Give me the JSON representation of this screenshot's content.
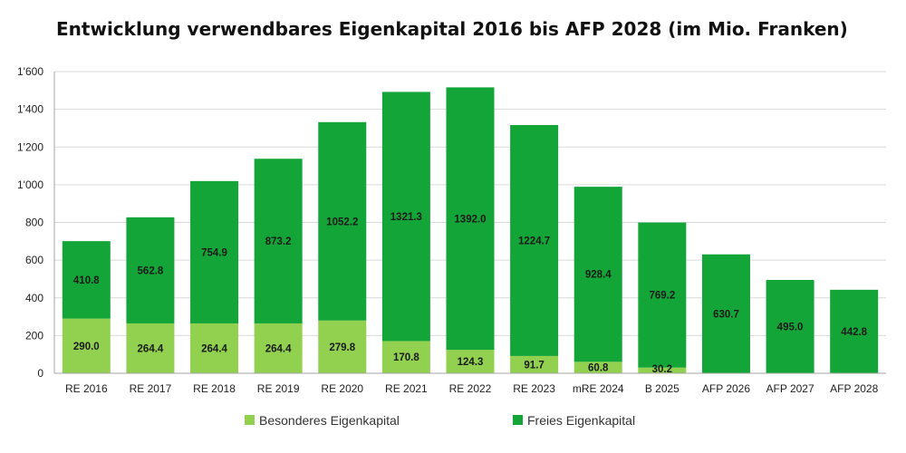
{
  "title": "Entwicklung verwendbares Eigenkapital 2016 bis AFP 2028 (im Mio. Franken)",
  "colors": {
    "besonderes": "#92d050",
    "freies": "#13a538",
    "grid": "#d9d9d9",
    "axis": "#a6a6a6"
  },
  "chart_data": {
    "type": "bar",
    "stacked": true,
    "categories": [
      "RE 2016",
      "RE 2017",
      "RE 2018",
      "RE 2019",
      "RE 2020",
      "RE 2021",
      "RE 2022",
      "RE 2023",
      "mRE 2024",
      "B 2025",
      "AFP 2026",
      "AFP 2027",
      "AFP 2028"
    ],
    "series": [
      {
        "name": "Besonderes Eigenkapital",
        "values": [
          290.0,
          264.4,
          264.4,
          264.4,
          279.8,
          170.8,
          124.3,
          91.7,
          60.8,
          30.2,
          0,
          0,
          0
        ],
        "labels": [
          "290.0",
          "264.4",
          "264.4",
          "264.4",
          "279.8",
          "170.8",
          "124.3",
          "91.7",
          "60.8",
          "30.2",
          "",
          "",
          ""
        ]
      },
      {
        "name": "Freies Eigenkapital",
        "values": [
          410.8,
          562.8,
          754.9,
          873.2,
          1052.2,
          1321.3,
          1392.0,
          1224.7,
          928.4,
          769.2,
          630.7,
          495.0,
          442.8
        ],
        "labels": [
          "410.8",
          "562.8",
          "754.9",
          "873.2",
          "1052.2",
          "1321.3",
          "1392.0",
          "1224.7",
          "928.4",
          "769.2",
          "630.7",
          "495.0",
          "442.8"
        ]
      }
    ],
    "ylim": [
      0,
      1600
    ],
    "yticks": [
      0,
      200,
      400,
      600,
      800,
      1000,
      1200,
      1400,
      1600
    ],
    "ytick_labels": [
      "0",
      "200",
      "400",
      "600",
      "800",
      "1'000",
      "1'200",
      "1'400",
      "1'600"
    ],
    "grid": true,
    "legend_position": "bottom"
  }
}
